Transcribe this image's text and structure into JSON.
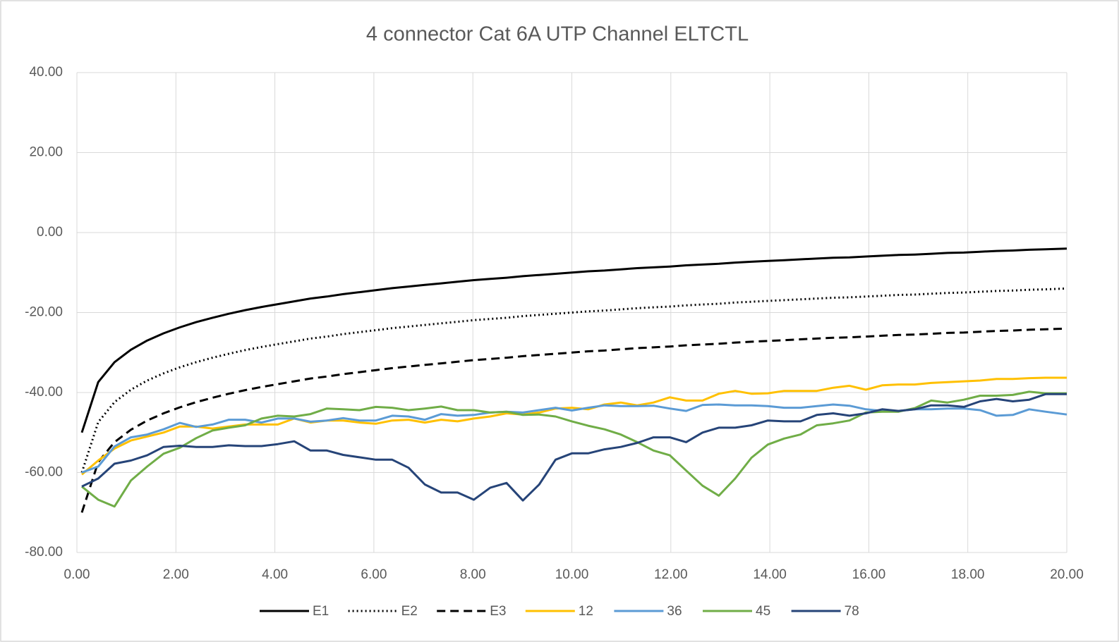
{
  "chart_data": {
    "type": "line",
    "title": "4 connector Cat 6A UTP Channel ELTCTL",
    "x": [
      0.1,
      0.43,
      0.76,
      1.09,
      1.42,
      1.75,
      2.08,
      2.41,
      2.74,
      3.07,
      3.4,
      3.73,
      4.06,
      4.39,
      4.72,
      5.05,
      5.38,
      5.71,
      6.04,
      6.37,
      6.7,
      7.03,
      7.36,
      7.69,
      8.02,
      8.35,
      8.68,
      9.01,
      9.34,
      9.67,
      10.0,
      10.33,
      10.66,
      10.99,
      11.32,
      11.65,
      11.98,
      12.31,
      12.64,
      12.97,
      13.3,
      13.63,
      13.96,
      14.29,
      14.62,
      14.95,
      15.28,
      15.61,
      15.94,
      16.27,
      16.6,
      16.93,
      17.26,
      17.59,
      17.92,
      18.25,
      18.58,
      18.91,
      19.24,
      19.57,
      20.0
    ],
    "series": [
      {
        "name": "E1",
        "color": "#000000",
        "line_style": "solid",
        "values": [
          -50.0,
          -37.4,
          -32.4,
          -29.3,
          -27.0,
          -25.2,
          -23.7,
          -22.4,
          -21.3,
          -20.3,
          -19.4,
          -18.6,
          -17.9,
          -17.2,
          -16.5,
          -16.0,
          -15.4,
          -14.9,
          -14.4,
          -13.9,
          -13.5,
          -13.1,
          -12.7,
          -12.3,
          -11.9,
          -11.6,
          -11.3,
          -10.9,
          -10.6,
          -10.3,
          -10.0,
          -9.7,
          -9.5,
          -9.2,
          -8.9,
          -8.7,
          -8.5,
          -8.2,
          -8.0,
          -7.8,
          -7.5,
          -7.3,
          -7.1,
          -6.9,
          -6.7,
          -6.5,
          -6.3,
          -6.2,
          -6.0,
          -5.8,
          -5.6,
          -5.5,
          -5.3,
          -5.1,
          -5.0,
          -4.8,
          -4.6,
          -4.5,
          -4.3,
          -4.2,
          -4.0
        ]
      },
      {
        "name": "E2",
        "color": "#000000",
        "line_style": "dotted",
        "values": [
          -60.0,
          -47.4,
          -42.4,
          -39.3,
          -37.0,
          -35.2,
          -33.7,
          -32.4,
          -31.3,
          -30.3,
          -29.4,
          -28.6,
          -27.9,
          -27.2,
          -26.5,
          -26.0,
          -25.4,
          -24.9,
          -24.4,
          -23.9,
          -23.5,
          -23.1,
          -22.7,
          -22.3,
          -21.9,
          -21.6,
          -21.3,
          -20.9,
          -20.6,
          -20.3,
          -20.0,
          -19.7,
          -19.5,
          -19.2,
          -18.9,
          -18.7,
          -18.5,
          -18.2,
          -18.0,
          -17.8,
          -17.5,
          -17.3,
          -17.1,
          -16.9,
          -16.7,
          -16.5,
          -16.3,
          -16.2,
          -16.0,
          -15.8,
          -15.6,
          -15.5,
          -15.3,
          -15.1,
          -15.0,
          -14.8,
          -14.6,
          -14.5,
          -14.3,
          -14.2,
          -14.0
        ]
      },
      {
        "name": "E3",
        "color": "#000000",
        "line_style": "dashed",
        "values": [
          -70.0,
          -57.4,
          -52.4,
          -49.3,
          -47.0,
          -45.2,
          -43.7,
          -42.4,
          -41.3,
          -40.3,
          -39.4,
          -38.6,
          -37.9,
          -37.2,
          -36.5,
          -36.0,
          -35.4,
          -34.9,
          -34.4,
          -33.9,
          -33.5,
          -33.1,
          -32.7,
          -32.3,
          -31.9,
          -31.6,
          -31.3,
          -30.9,
          -30.6,
          -30.3,
          -30.0,
          -29.7,
          -29.5,
          -29.2,
          -28.9,
          -28.7,
          -28.5,
          -28.2,
          -28.0,
          -27.8,
          -27.5,
          -27.3,
          -27.1,
          -26.9,
          -26.7,
          -26.5,
          -26.3,
          -26.2,
          -26.0,
          -25.8,
          -25.6,
          -25.5,
          -25.3,
          -25.1,
          -25.0,
          -24.8,
          -24.6,
          -24.5,
          -24.3,
          -24.2,
          -24.0
        ]
      },
      {
        "name": "12",
        "color": "#ffc000",
        "line_style": "solid",
        "values": [
          -60.5,
          -57,
          -54,
          -52,
          -51,
          -50,
          -48.5,
          -48.5,
          -49,
          -48.5,
          -48,
          -48,
          -48,
          -46.5,
          -47.5,
          -47,
          -47,
          -47.5,
          -47.8,
          -47,
          -46.8,
          -47.5,
          -46.8,
          -47.2,
          -46.5,
          -46,
          -45.2,
          -45.5,
          -45,
          -44,
          -43.8,
          -44.2,
          -43,
          -42.5,
          -43.2,
          -42.5,
          -41.2,
          -42,
          -42,
          -40.3,
          -39.6,
          -40.3,
          -40.2,
          -39.6,
          -39.6,
          -39.6,
          -38.8,
          -38.3,
          -39.3,
          -38.2,
          -38,
          -38,
          -37.6,
          -37.4,
          -37.2,
          -37,
          -36.6,
          -36.6,
          -36.4,
          -36.3,
          -36.3
        ]
      },
      {
        "name": "36",
        "color": "#5b9bd5",
        "line_style": "solid",
        "values": [
          -60,
          -58.5,
          -53.5,
          -51.2,
          -50.5,
          -49.2,
          -47.6,
          -48.6,
          -48,
          -46.8,
          -46.8,
          -47.5,
          -46.5,
          -46.5,
          -47.3,
          -47,
          -46.4,
          -47,
          -47,
          -45.8,
          -46,
          -46.8,
          -45.4,
          -45.8,
          -45.6,
          -45,
          -44.8,
          -45,
          -44.4,
          -43.8,
          -44.5,
          -43.8,
          -43.2,
          -43.4,
          -43.4,
          -43.3,
          -44,
          -44.6,
          -43.1,
          -43,
          -43.2,
          -43.2,
          -43.4,
          -43.8,
          -43.8,
          -43.4,
          -43,
          -43.3,
          -44.2,
          -44.6,
          -44.6,
          -44.2,
          -44.2,
          -44,
          -44,
          -44.4,
          -45.8,
          -45.6,
          -44.2,
          -44.8,
          -45.5
        ]
      },
      {
        "name": "45",
        "color": "#70ad47",
        "line_style": "solid",
        "values": [
          -63.5,
          -66.8,
          -68.5,
          -62,
          -58.5,
          -55.3,
          -53.8,
          -51.4,
          -49.5,
          -48.8,
          -48.2,
          -46.5,
          -45.8,
          -46,
          -45.4,
          -44,
          -44.2,
          -44.4,
          -43.6,
          -43.8,
          -44.4,
          -44,
          -43.5,
          -44.4,
          -44.4,
          -45,
          -44.8,
          -45.6,
          -45.5,
          -46,
          -47.2,
          -48.3,
          -49.2,
          -50.5,
          -52.4,
          -54.5,
          -55.7,
          -59.5,
          -63.3,
          -65.8,
          -61.5,
          -56.3,
          -53,
          -51.5,
          -50.5,
          -48.2,
          -47.7,
          -47,
          -45,
          -44.8,
          -44.8,
          -43.9,
          -42,
          -42.5,
          -41.8,
          -40.8,
          -40.8,
          -40.6,
          -39.8,
          -40.2,
          -40.2
        ]
      },
      {
        "name": "78",
        "color": "#264478",
        "line_style": "solid",
        "values": [
          -63.5,
          -61.5,
          -57.8,
          -57,
          -55.7,
          -53.6,
          -53.3,
          -53.6,
          -53.6,
          -53.2,
          -53.4,
          -53.4,
          -52.9,
          -52.2,
          -54.5,
          -54.5,
          -55.6,
          -56.2,
          -56.8,
          -56.8,
          -58.8,
          -63,
          -65,
          -65,
          -66.8,
          -63.8,
          -62.6,
          -67,
          -63,
          -56.8,
          -55.2,
          -55.2,
          -54.2,
          -53.6,
          -52.6,
          -51.2,
          -51.2,
          -52.4,
          -50,
          -48.8,
          -48.8,
          -48.2,
          -47,
          -47.2,
          -47.2,
          -45.6,
          -45.2,
          -45.8,
          -45.2,
          -44.2,
          -44.6,
          -44.2,
          -43.2,
          -43.2,
          -43.6,
          -42.2,
          -41.6,
          -42.2,
          -41.8,
          -40.4,
          -40.4
        ]
      }
    ],
    "xlim": [
      0,
      20
    ],
    "xticks": [
      {
        "value": 0,
        "label": "0.00"
      },
      {
        "value": 2,
        "label": "2.00"
      },
      {
        "value": 4,
        "label": "4.00"
      },
      {
        "value": 6,
        "label": "6.00"
      },
      {
        "value": 8,
        "label": "8.00"
      },
      {
        "value": 10,
        "label": "10.00"
      },
      {
        "value": 12,
        "label": "12.00"
      },
      {
        "value": 14,
        "label": "14.00"
      },
      {
        "value": 16,
        "label": "16.00"
      },
      {
        "value": 18,
        "label": "18.00"
      },
      {
        "value": 20,
        "label": "20.00"
      }
    ],
    "ylim": [
      -80,
      40
    ],
    "yticks": [
      {
        "value": 40,
        "label": "40.00"
      },
      {
        "value": 20,
        "label": "20.00"
      },
      {
        "value": 0,
        "label": "0.00"
      },
      {
        "value": -20,
        "label": "-20.00"
      },
      {
        "value": -40,
        "label": "-40.00"
      },
      {
        "value": -60,
        "label": "-60.00"
      },
      {
        "value": -80,
        "label": "-80.00"
      }
    ],
    "grid": true,
    "legend": "bottom"
  }
}
